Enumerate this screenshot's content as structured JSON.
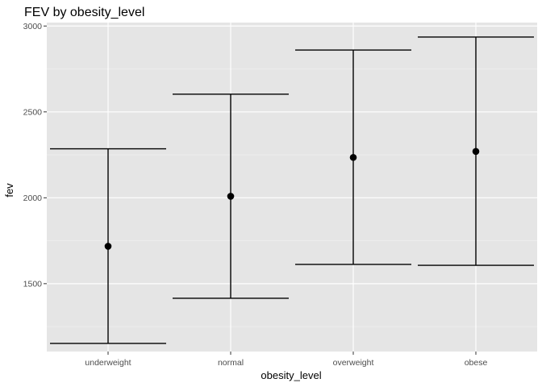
{
  "chart_data": {
    "type": "errorbar",
    "title": "FEV by obesity_level",
    "xlabel": "obesity_level",
    "ylabel": "fev",
    "categories": [
      "underweight",
      "normal",
      "overweight",
      "obese"
    ],
    "mean": [
      1718,
      2009,
      2235,
      2270
    ],
    "lower": [
      1152,
      1415,
      1612,
      1607
    ],
    "upper": [
      2285,
      2603,
      2860,
      2936
    ],
    "y_ticks": [
      1500,
      2000,
      2500,
      3000
    ],
    "ylim": [
      1105,
      3020
    ],
    "grid": true,
    "colors": {
      "panel_background": "#e5e5e5",
      "grid_major": "#ffffff",
      "grid_minor": "#f2f2f2",
      "marks": "#000000",
      "tick_label": "#4d4d4d",
      "tick_mark": "#333333"
    }
  }
}
